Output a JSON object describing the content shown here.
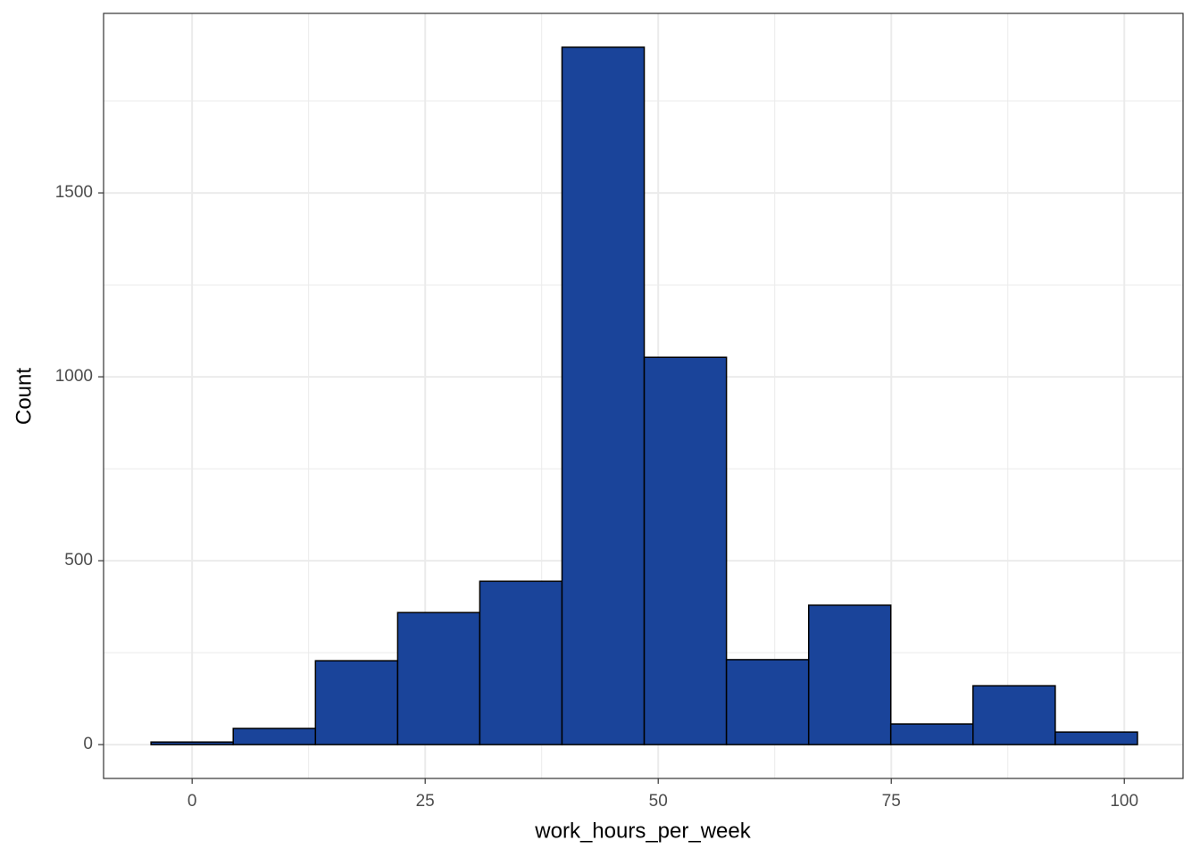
{
  "chart_data": {
    "type": "histogram",
    "x_label": "work_hours_per_week",
    "y_label": "Count",
    "bins": [
      -4.41,
      4.41,
      13.23,
      22.05,
      30.86,
      39.68,
      48.5,
      57.32,
      66.14,
      74.95,
      83.77,
      92.59,
      101.41
    ],
    "values": [
      7,
      44,
      228,
      359,
      444,
      1896,
      1053,
      231,
      379,
      56,
      160,
      34
    ],
    "color": "#1a449a",
    "edge_color": "#000000",
    "xlim": [
      -9.5,
      106.3
    ],
    "ylim": [
      -92,
      1988
    ],
    "xticks": [
      0,
      25,
      50,
      75,
      100
    ],
    "yticks": [
      0,
      500,
      1000,
      1500
    ],
    "x_minor_grid": [
      12.5,
      37.5,
      62.5,
      87.5
    ],
    "y_minor_grid": [
      250,
      750,
      1250,
      1750
    ],
    "grid": true
  }
}
